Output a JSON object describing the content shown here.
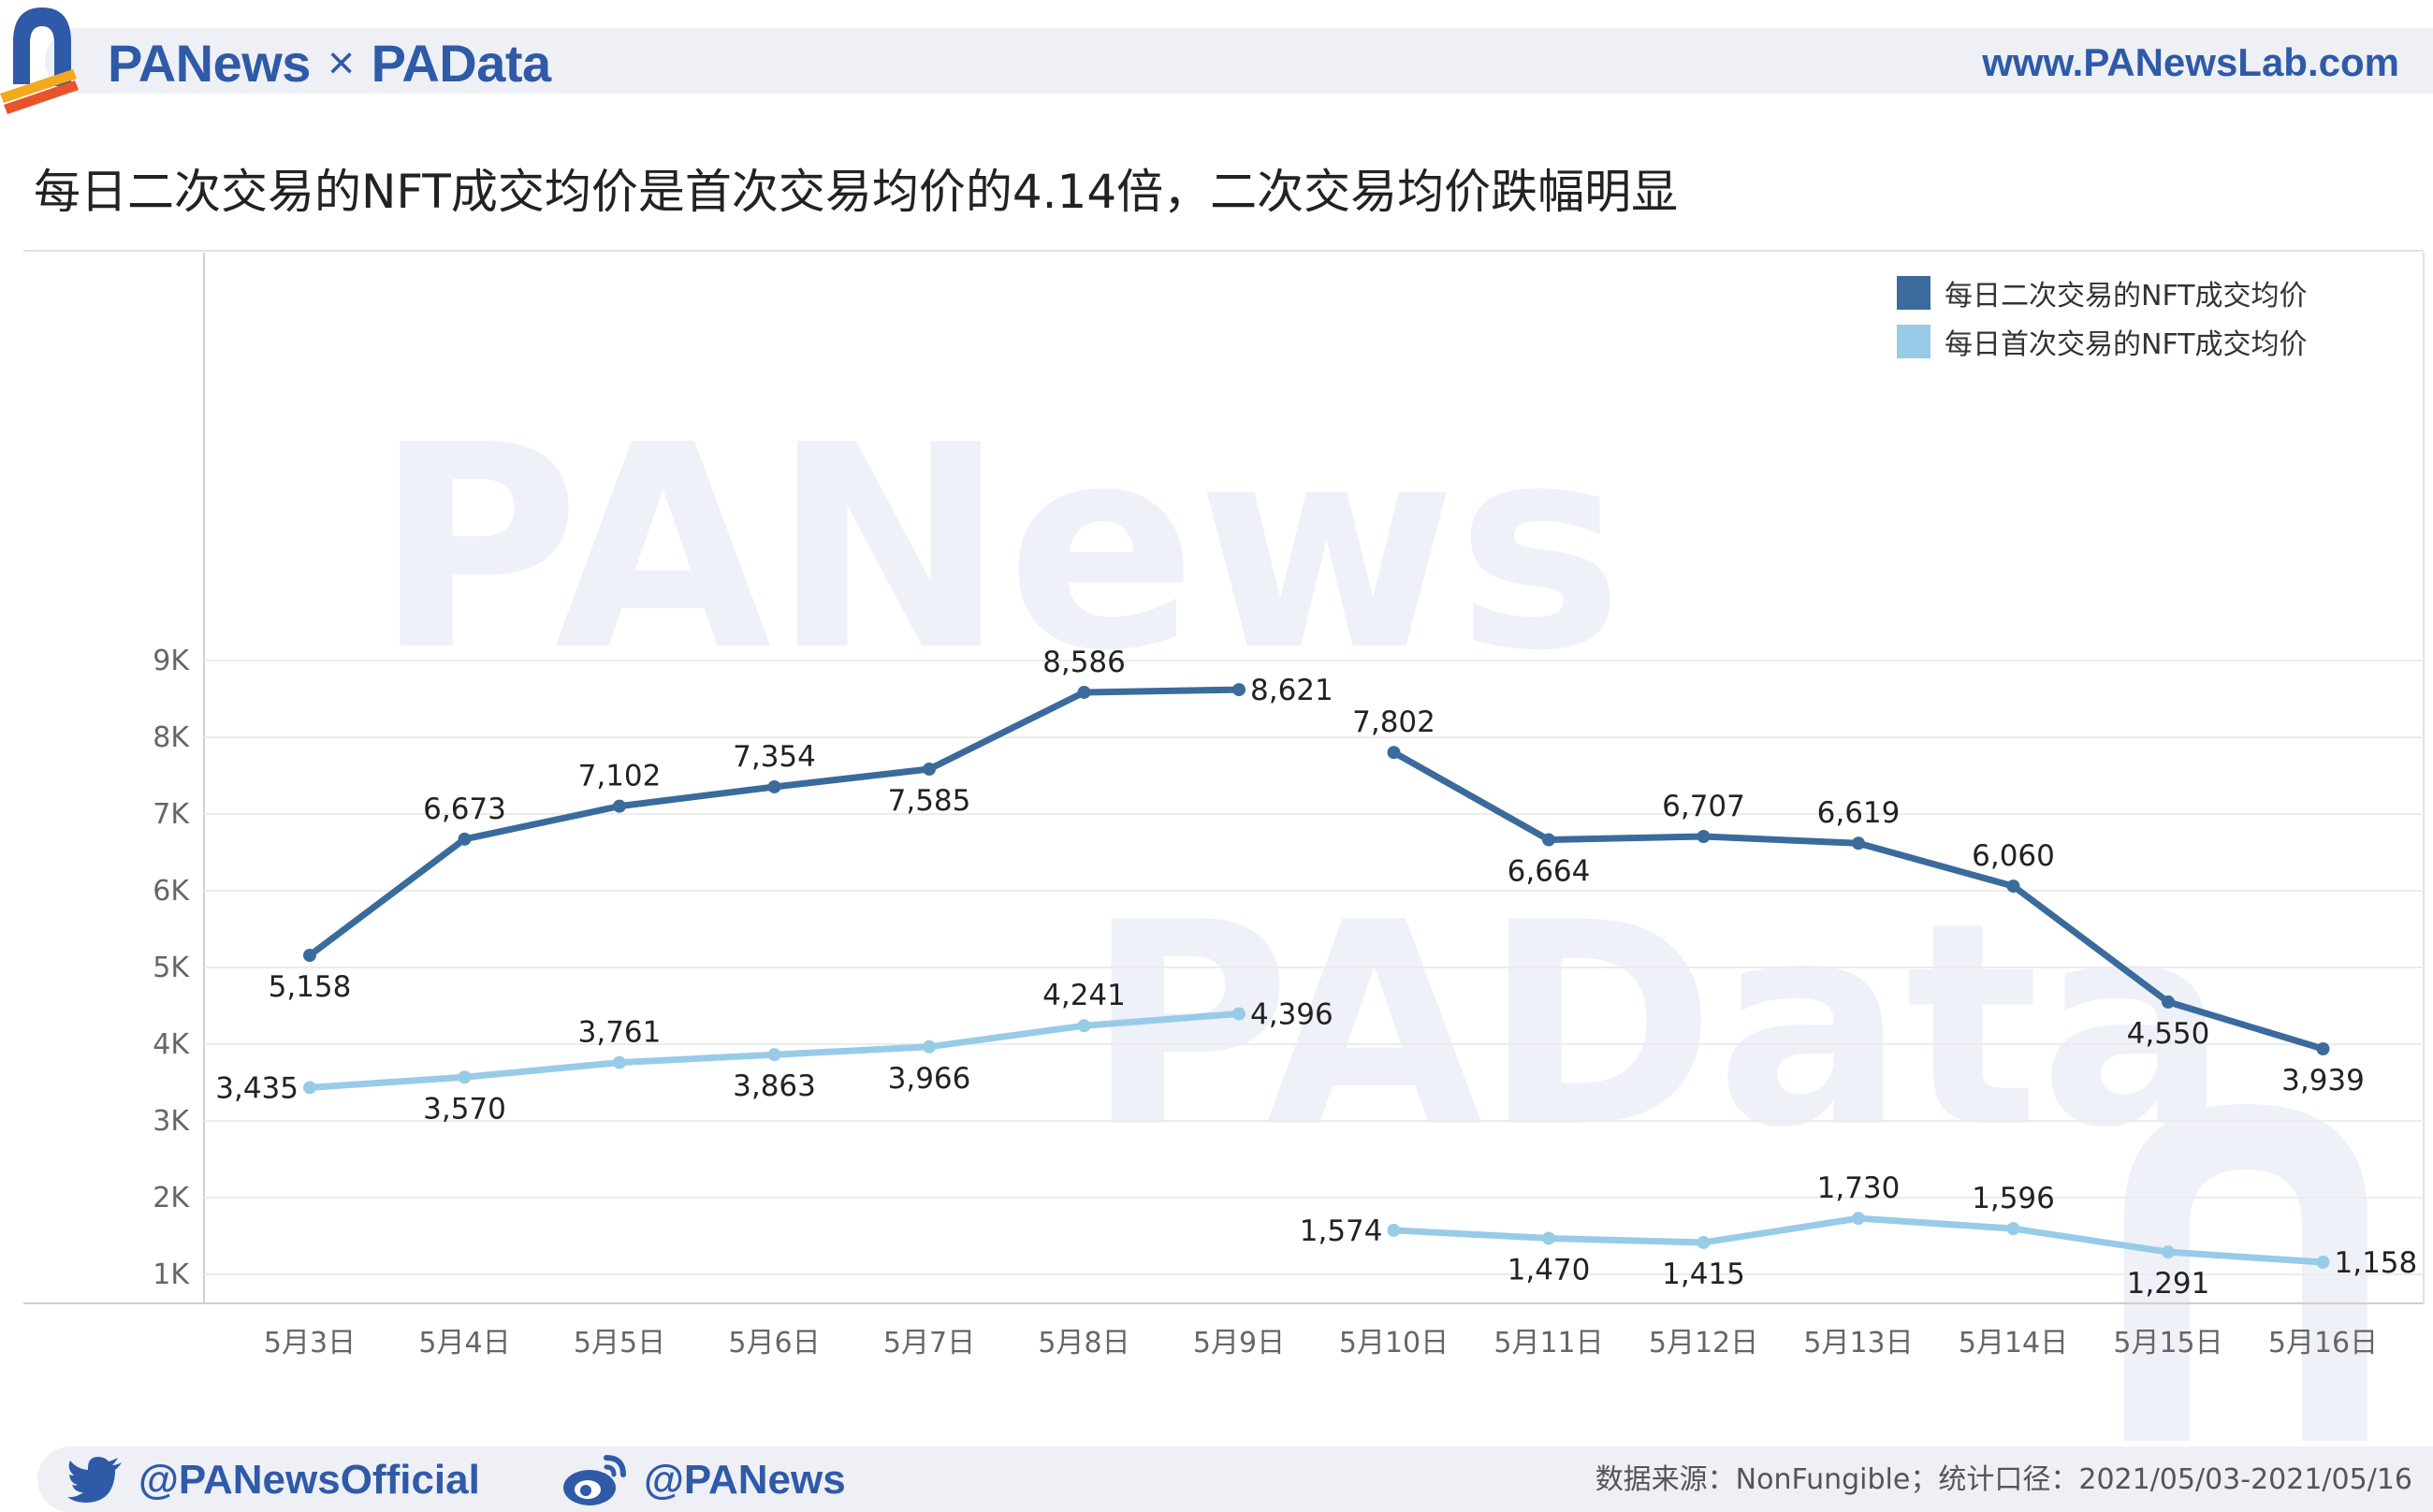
{
  "header": {
    "brand_left": "PANews",
    "brand_sep": "×",
    "brand_right": "PAData",
    "site": "www.PANewsLab.com"
  },
  "title": "每日二次交易的NFT成交均价是首次交易均价的4.14倍，二次交易均价跌幅明显",
  "watermarks": {
    "top": "PANews",
    "bottom": "PAData"
  },
  "footer": {
    "twitter": "@PANewsOfficial",
    "weibo": "@PANews",
    "source": "数据来源：NonFungible；统计口径：2021/05/03-2021/05/16"
  },
  "colors": {
    "secondary": "#3a6b9c",
    "primary": "#98cbe8",
    "brand": "#2f5aa8"
  },
  "chart_data": {
    "type": "line",
    "categories": [
      "5月3日",
      "5月4日",
      "5月5日",
      "5月6日",
      "5月7日",
      "5月8日",
      "5月9日",
      "5月10日",
      "5月11日",
      "5月12日",
      "5月13日",
      "5月14日",
      "5月15日",
      "5月16日"
    ],
    "ylim": [
      800,
      9200
    ],
    "yticks": [
      {
        "value": 1000,
        "label": "1K"
      },
      {
        "value": 2000,
        "label": "2K"
      },
      {
        "value": 3000,
        "label": "3K"
      },
      {
        "value": 4000,
        "label": "4K"
      },
      {
        "value": 5000,
        "label": "5K"
      },
      {
        "value": 6000,
        "label": "6K"
      },
      {
        "value": 7000,
        "label": "7K"
      },
      {
        "value": 8000,
        "label": "8K"
      },
      {
        "value": 9000,
        "label": "9K"
      }
    ],
    "grid": true,
    "legend_position": "top-right",
    "series": [
      {
        "name": "每日二次交易的NFT成交均价",
        "color": "#3a6b9c",
        "values": [
          5158,
          6673,
          7102,
          7354,
          7585,
          8586,
          8621,
          7802,
          6664,
          6707,
          6619,
          6060,
          4550,
          3939
        ],
        "labels": [
          "5,158",
          "6,673",
          "7,102",
          "7,354",
          "7,585",
          "8,586",
          "8,621",
          "7,802",
          "6,664",
          "6,707",
          "6,619",
          "6,060",
          "4,550",
          "3,939"
        ],
        "label_pos": [
          "below",
          "above",
          "above",
          "above",
          "below",
          "above",
          "right",
          "above",
          "below",
          "above",
          "above",
          "above",
          "below",
          "below"
        ]
      },
      {
        "name": "每日首次交易的NFT成交均价",
        "color": "#98cbe8",
        "values": [
          3435,
          3570,
          3761,
          3863,
          3966,
          4241,
          4396,
          1574,
          1470,
          1415,
          1730,
          1596,
          1291,
          1158
        ],
        "labels": [
          "3,435",
          "3,570",
          "3,761",
          "3,863",
          "3,966",
          "4,241",
          "4,396",
          "1,574",
          "1,470",
          "1,415",
          "1,730",
          "1,596",
          "1,291",
          "1,158"
        ],
        "label_pos": [
          "left",
          "below",
          "above",
          "below",
          "below",
          "above",
          "right",
          "left",
          "below",
          "below",
          "above",
          "above",
          "below",
          "right"
        ]
      }
    ],
    "segments_break_after_index": 6
  }
}
